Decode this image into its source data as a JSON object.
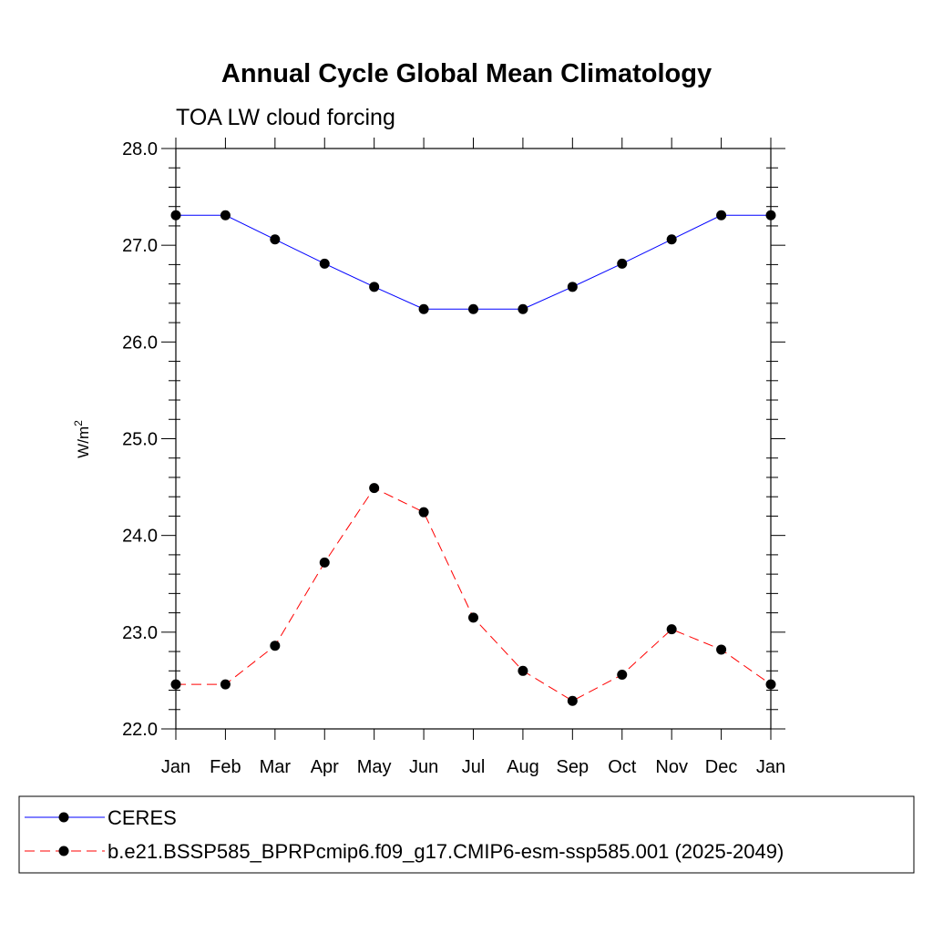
{
  "chart_data": {
    "type": "line",
    "title": "Annual Cycle Global Mean Climatology",
    "subtitle": "TOA LW cloud forcing",
    "ylabel": "W/m",
    "ylabel_superscript": "2",
    "xlabel": "",
    "categories": [
      "Jan",
      "Feb",
      "Mar",
      "Apr",
      "May",
      "Jun",
      "Jul",
      "Aug",
      "Sep",
      "Oct",
      "Nov",
      "Dec",
      "Jan"
    ],
    "ylim": [
      22.0,
      28.0
    ],
    "yticks": [
      "22.0",
      "23.0",
      "24.0",
      "25.0",
      "26.0",
      "27.0",
      "28.0"
    ],
    "grid": false,
    "legend_position": "bottom",
    "series": [
      {
        "name": "CERES",
        "color": "#0000ff",
        "dash": "solid",
        "values": [
          27.31,
          27.31,
          27.06,
          26.81,
          26.57,
          26.34,
          26.34,
          26.34,
          26.57,
          26.81,
          27.06,
          27.31,
          27.31
        ]
      },
      {
        "name": "b.e21.BSSP585_BPRPcmip6.f09_g17.CMIP6-esm-ssp585.001 (2025-2049)",
        "color": "#ff0000",
        "dash": "dashed",
        "values": [
          22.46,
          22.46,
          22.86,
          23.72,
          24.49,
          24.24,
          23.15,
          22.6,
          22.29,
          22.56,
          23.03,
          22.82,
          22.46
        ]
      }
    ]
  }
}
